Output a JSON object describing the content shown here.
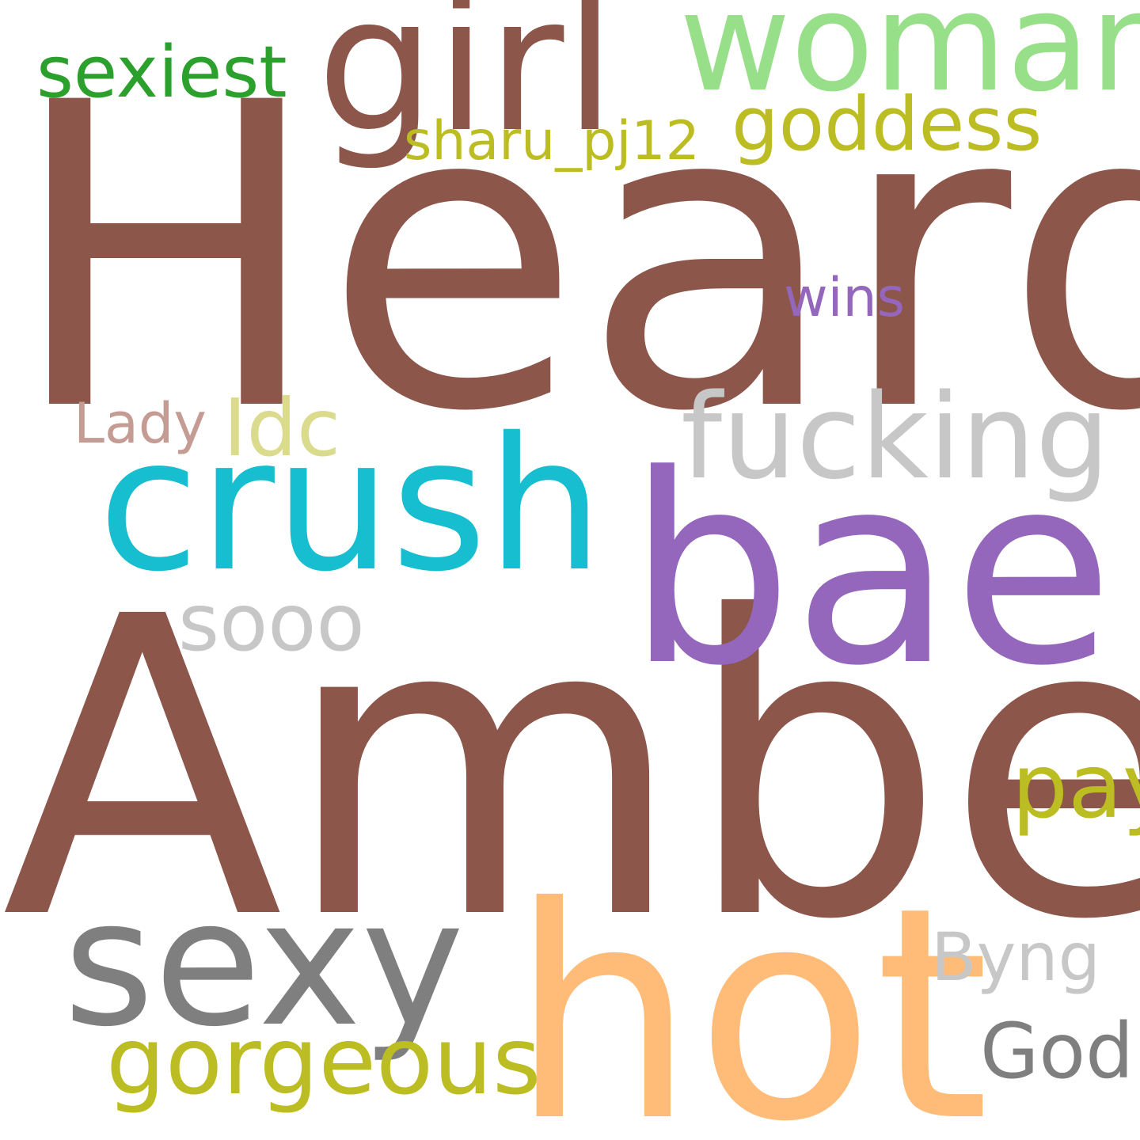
{
  "words": {
    "heard": {
      "text": "Heard",
      "color": "#8c564b"
    },
    "amber": {
      "text": "Amber",
      "color": "#8c564b"
    },
    "girl": {
      "text": "girl",
      "color": "#8c564b"
    },
    "woman": {
      "text": "woman",
      "color": "#98df8a"
    },
    "sexiest": {
      "text": "sexiest",
      "color": "#2ca02c"
    },
    "goddess": {
      "text": "goddess",
      "color": "#bcbd22"
    },
    "sharu": {
      "text": "sharu_pj12",
      "color": "#bcbd22"
    },
    "wins": {
      "text": "wins",
      "color": "#9467bd"
    },
    "lady": {
      "text": "Lady",
      "color": "#c49c94"
    },
    "idc": {
      "text": "Idc",
      "color": "#dbdb8d"
    },
    "fucking": {
      "text": "fucking",
      "color": "#c7c7c7"
    },
    "crush": {
      "text": "crush",
      "color": "#17becf"
    },
    "bae": {
      "text": "bae",
      "color": "#9467bd"
    },
    "sooo": {
      "text": "sooo",
      "color": "#c7c7c7"
    },
    "pay": {
      "text": "pay",
      "color": "#bcbd22"
    },
    "sexy": {
      "text": "sexy",
      "color": "#7f7f7f"
    },
    "hot": {
      "text": "hot",
      "color": "#ffbb78"
    },
    "byng": {
      "text": "Byng",
      "color": "#c7c7c7"
    },
    "gorgeous": {
      "text": "gorgeous",
      "color": "#bcbd22"
    },
    "god": {
      "text": "God",
      "color": "#7f7f7f"
    }
  }
}
